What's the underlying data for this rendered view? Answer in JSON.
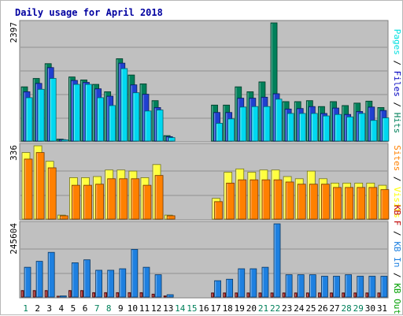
{
  "chart_data": {
    "title": "Daily usage for April 2018",
    "type": "bar",
    "days": [
      1,
      2,
      3,
      4,
      5,
      6,
      7,
      8,
      9,
      10,
      11,
      12,
      13,
      14,
      15,
      16,
      17,
      18,
      19,
      20,
      21,
      22,
      23,
      24,
      25,
      26,
      27,
      28,
      29,
      30,
      31
    ],
    "weekend_days": [
      1,
      7,
      8,
      14,
      15,
      21,
      22,
      28,
      29
    ],
    "panels": [
      {
        "id": "hits-files-pages",
        "ymax_label": "2397",
        "ymax": 2397,
        "legend": [
          {
            "text": "Pages",
            "color": "#00e0e0"
          },
          {
            "text": " / ",
            "color": "#000000"
          },
          {
            "text": "Files",
            "color": "#0000c0"
          },
          {
            "text": " / ",
            "color": "#000000"
          },
          {
            "text": "Hits",
            "color": "#00805a"
          }
        ],
        "series": [
          {
            "name": "Hits",
            "color": "#00805a",
            "values": [
              1100,
              1270,
              1570,
              40,
              1300,
              1240,
              1150,
              1000,
              1670,
              1340,
              1160,
              820,
              110,
              0,
              0,
              0,
              730,
              730,
              1100,
              1000,
              1200,
              2397,
              800,
              800,
              820,
              700,
              800,
              720,
              770,
              810,
              680
            ]
          },
          {
            "name": "Files",
            "color": "#2040d0",
            "values": [
              1000,
              1170,
              1490,
              30,
              1230,
              1190,
              1060,
              910,
              1580,
              1140,
              950,
              680,
              90,
              0,
              0,
              0,
              580,
              580,
              870,
              870,
              890,
              960,
              650,
              660,
              700,
              560,
              670,
              540,
              600,
              690,
              620
            ]
          },
          {
            "name": "Pages",
            "color": "#00d8f0",
            "values": [
              880,
              1050,
              1270,
              25,
              1150,
              1150,
              880,
              720,
              1470,
              980,
              610,
              630,
              70,
              0,
              0,
              0,
              360,
              450,
              690,
              700,
              700,
              850,
              560,
              560,
              560,
              510,
              540,
              490,
              560,
              420,
              470
            ]
          }
        ]
      },
      {
        "id": "visits-sites",
        "ymax_label": "336",
        "ymax": 336,
        "legend": [
          {
            "text": "Sites",
            "color": "#ff8000"
          },
          {
            "text": " / ",
            "color": "#000000"
          },
          {
            "text": "Visits",
            "color": "#ffff00"
          }
        ],
        "series": [
          {
            "name": "Visits",
            "color": "#ffff40",
            "values": [
              305,
              336,
              265,
              18,
              190,
              190,
              195,
              225,
              225,
              220,
              190,
              250,
              18,
              0,
              0,
              0,
              95,
              215,
              230,
              215,
              225,
              225,
              195,
              185,
              220,
              185,
              165,
              165,
              165,
              165,
              155
            ]
          },
          {
            "name": "Sites",
            "color": "#ff8000",
            "values": [
              275,
              305,
              235,
              15,
              155,
              155,
              160,
              185,
              185,
              185,
              155,
              200,
              15,
              0,
              0,
              0,
              80,
              165,
              180,
              180,
              180,
              180,
              170,
              160,
              160,
              160,
              145,
              145,
              145,
              145,
              135
            ]
          }
        ]
      },
      {
        "id": "kbin-kbout-kbf",
        "ymax_label": "245604",
        "ymax": 245604,
        "legend": [
          {
            "text": "KB F",
            "color": "#c00000"
          },
          {
            "text": " / ",
            "color": "#000000"
          },
          {
            "text": "KB In",
            "color": "#1e80e0"
          },
          {
            "text": " / ",
            "color": "#000000"
          },
          {
            "text": "KB Out",
            "color": "#00a000"
          }
        ],
        "series": [
          {
            "name": "KB F",
            "color": "#a01818",
            "values": [
              22000,
              22000,
              22000,
              3000,
              22000,
              22000,
              15000,
              15000,
              15000,
              15000,
              15000,
              10000,
              4000,
              0,
              0,
              0,
              14000,
              14000,
              14000,
              14000,
              14000,
              14000,
              14000,
              14000,
              14000,
              14000,
              14000,
              14000,
              14000,
              14000,
              14000
            ]
          },
          {
            "name": "KB In",
            "color": "#1e80e0",
            "values": [
              100000,
              120000,
              150000,
              4000,
              115000,
              125000,
              90000,
              90000,
              95000,
              160000,
              100000,
              75000,
              8000,
              0,
              0,
              0,
              55000,
              60000,
              95000,
              95000,
              100000,
              245604,
              75000,
              75000,
              75000,
              70000,
              70000,
              75000,
              70000,
              70000,
              70000
            ]
          }
        ]
      }
    ]
  }
}
